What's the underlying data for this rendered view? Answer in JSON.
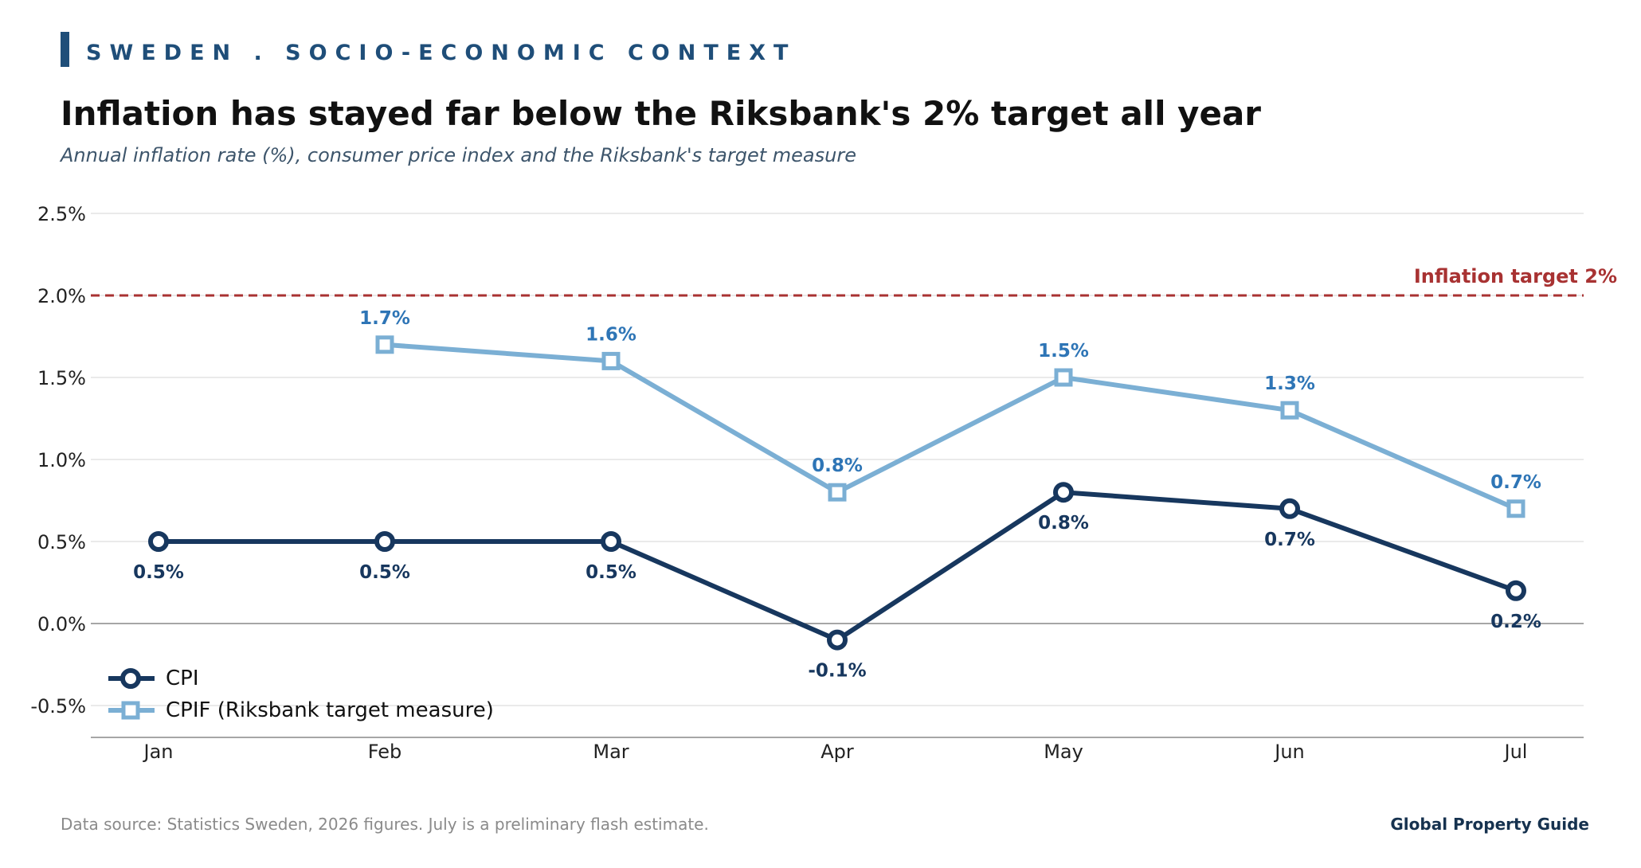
{
  "header": {
    "eyebrow": "SWEDEN . SOCIO-ECONOMIC CONTEXT",
    "title": "Inflation has stayed far below the Riksbank's 2% target all year",
    "subtitle": "Annual inflation rate (%), consumer price index and the Riksbank's target measure"
  },
  "footer": {
    "source": "Data source: Statistics Sweden, 2026 figures. July is a preliminary flash estimate.",
    "brand": "Global Property Guide"
  },
  "colors": {
    "cpi": "#17375e",
    "cpif": "#7bafd4",
    "cpif_label": "#2e75b6",
    "target": "#a83232",
    "grid": "#dddddd",
    "axis": "#888888",
    "accent": "#1f4e79"
  },
  "chart_data": {
    "type": "line",
    "categories": [
      "Jan",
      "Feb",
      "Mar",
      "Apr",
      "May",
      "Jun",
      "Jul"
    ],
    "series": [
      {
        "name": "CPI",
        "marker": "circle",
        "values": [
          0.5,
          0.5,
          0.5,
          -0.1,
          0.8,
          0.7,
          0.2
        ],
        "labels": [
          "0.5%",
          "0.5%",
          "0.5%",
          "-0.1%",
          "0.8%",
          "0.7%",
          "0.2%"
        ]
      },
      {
        "name": "CPIF (Riksbank target measure)",
        "marker": "square",
        "values": [
          null,
          1.7,
          1.6,
          0.8,
          1.5,
          1.3,
          0.7
        ],
        "labels": [
          "",
          "1.7%",
          "1.6%",
          "0.8%",
          "1.5%",
          "1.3%",
          "0.7%"
        ]
      }
    ],
    "reference_line": {
      "value": 2.0,
      "label": "Inflation target 2%",
      "style": "dashed"
    },
    "yticks": [
      -0.5,
      0.0,
      0.5,
      1.0,
      1.5,
      2.0,
      2.5
    ],
    "ytick_labels": [
      "-0.5%",
      "0.0%",
      "0.5%",
      "1.0%",
      "1.5%",
      "2.0%",
      "2.5%"
    ],
    "ylim": [
      -0.7,
      2.6
    ],
    "grid": true,
    "legend_position": "bottom-left"
  }
}
